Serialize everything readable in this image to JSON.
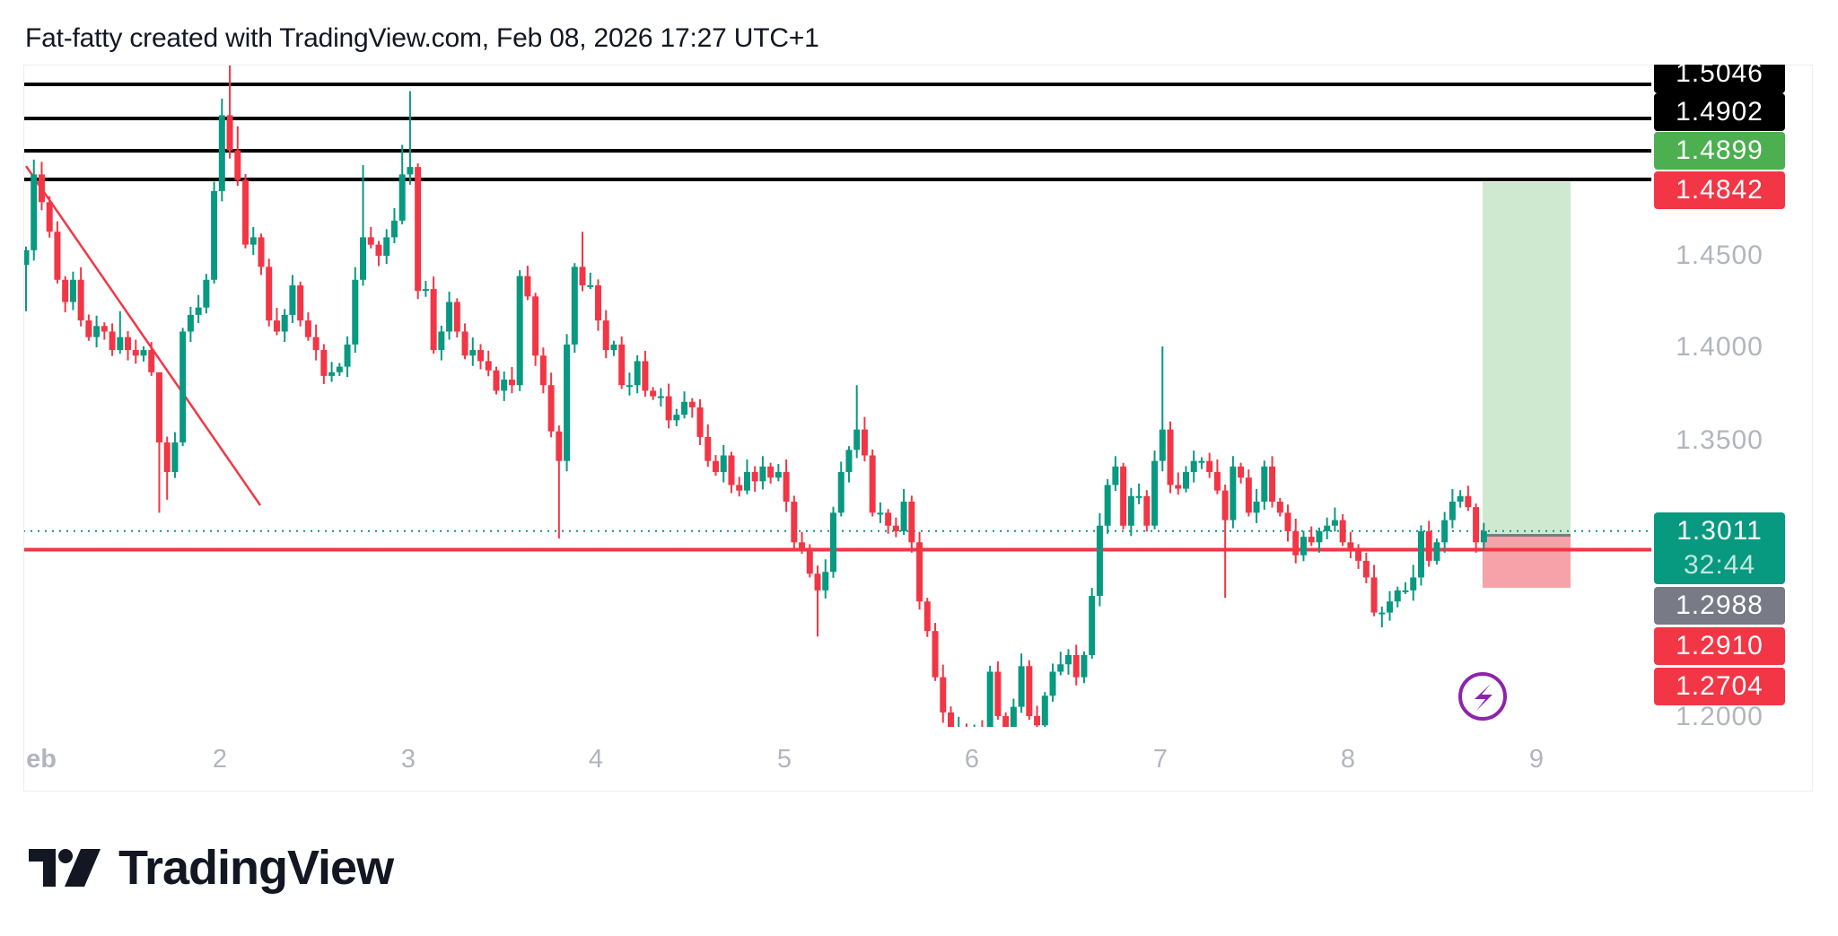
{
  "header": {
    "title": "Fat-fatty created with TradingView.com, Feb 08, 2026 17:27 UTC+1"
  },
  "brand": {
    "logo_text": "TradingView"
  },
  "colors": {
    "up": "#089981",
    "down": "#f23645",
    "target_fill": "#cfe9d0",
    "stop_fill": "#f7a1a8",
    "level_line": "#000000",
    "support_line": "#f23645",
    "alert_icon": "#8e24aa"
  },
  "price_axis": {
    "ticks": [
      "1.4500",
      "1.4000",
      "1.3500",
      "1.2000"
    ],
    "labels": [
      {
        "text": "1.5046",
        "color": "#000000"
      },
      {
        "text": "1.4902",
        "color": "#000000"
      },
      {
        "text": "1.4899",
        "color": "#4caf50"
      },
      {
        "text": "1.4842",
        "color": "#f23645"
      },
      {
        "text": "1.3011",
        "sub": "32:44",
        "color": "#089981"
      },
      {
        "text": "1.2988",
        "color": "#787b86"
      },
      {
        "text": "1.2910",
        "color": "#f23645"
      },
      {
        "text": "1.2704",
        "color": "#f23645"
      }
    ]
  },
  "time_axis": {
    "ticks": [
      "eb",
      "2",
      "3",
      "4",
      "5",
      "6",
      "7",
      "8",
      "9"
    ]
  },
  "alert_icon": "lightning-circle-icon",
  "chart_data": {
    "type": "candlestick",
    "x_range": [
      "Jan 31 23:00",
      "Feb 8 17:00"
    ],
    "ylim": [
      1.1951,
      1.5544
    ],
    "last_price": 1.3011,
    "countdown": "32:44",
    "first_open": 1.445,
    "close": [
      1.453,
      1.494,
      1.479,
      1.463,
      1.437,
      1.425,
      1.437,
      1.415,
      1.406,
      1.412,
      1.409,
      1.399,
      1.406,
      1.399,
      1.396,
      1.399,
      1.387,
      1.349,
      1.333,
      1.349,
      1.409,
      1.418,
      1.422,
      1.437,
      1.485,
      1.526,
      1.507,
      1.491,
      1.456,
      1.46,
      1.444,
      1.415,
      1.409,
      1.418,
      1.434,
      1.415,
      1.406,
      1.399,
      1.385,
      1.387,
      1.39,
      1.402,
      1.437,
      1.46,
      1.456,
      1.45,
      1.46,
      1.469,
      1.494,
      1.498,
      1.431,
      1.432,
      1.399,
      1.409,
      1.425,
      1.409,
      1.396,
      1.399,
      1.393,
      1.388,
      1.377,
      1.383,
      1.38,
      1.439,
      1.428,
      1.396,
      1.38,
      1.355,
      1.339,
      1.402,
      1.444,
      1.434,
      1.434,
      1.415,
      1.399,
      1.402,
      1.38,
      1.38,
      1.393,
      1.377,
      1.374,
      1.374,
      1.361,
      1.364,
      1.371,
      1.368,
      1.352,
      1.339,
      1.333,
      1.342,
      1.326,
      1.323,
      1.333,
      1.328,
      1.336,
      1.33,
      1.333,
      1.317,
      1.295,
      1.292,
      1.278,
      1.269,
      1.279,
      1.311,
      1.333,
      1.345,
      1.356,
      1.342,
      1.311,
      1.311,
      1.304,
      1.301,
      1.317,
      1.295,
      1.263,
      1.247,
      1.222,
      1.203,
      1.192,
      1.195,
      1.188,
      1.192,
      1.186,
      1.225,
      1.201,
      1.192,
      1.206,
      1.228,
      1.201,
      1.196,
      1.212,
      1.225,
      1.229,
      1.234,
      1.222,
      1.234,
      1.266,
      1.304,
      1.326,
      1.336,
      1.304,
      1.32,
      1.32,
      1.304,
      1.339,
      1.356,
      1.326,
      1.324,
      1.333,
      1.339,
      1.339,
      1.333,
      1.323,
      1.307,
      1.336,
      1.33,
      1.311,
      1.317,
      1.336,
      1.317,
      1.311,
      1.301,
      1.288,
      1.298,
      1.295,
      1.301,
      1.304,
      1.307,
      1.295,
      1.292,
      1.285,
      1.276,
      1.257,
      1.257,
      1.263,
      1.269,
      1.269,
      1.276,
      1.301,
      1.285,
      1.295,
      1.307,
      1.317,
      1.32,
      1.314,
      1.295,
      1.3011
    ],
    "high_extremes": {
      "1": 1.502,
      "12": 1.42,
      "17": 1.37,
      "24": 1.49,
      "25": 1.535,
      "26": 1.555,
      "27": 1.52,
      "43": 1.499,
      "48": 1.51,
      "49": 1.539,
      "71": 1.463,
      "106": 1.38,
      "145": 1.401
    },
    "low_extremes": {
      "0": 1.42,
      "17": 1.311,
      "18": 1.318,
      "68": 1.297,
      "101": 1.244,
      "153": 1.265,
      "173": 1.249
    },
    "levels": [
      1.5427,
      1.5243,
      1.5068,
      1.4913
    ],
    "support": 1.291,
    "trendline": [
      [
        1.4985,
        "Jan 31 23:00"
      ],
      [
        1.315,
        "Feb 2 05:00"
      ]
    ],
    "position": {
      "type": "long",
      "entry": 1.2988,
      "target": 1.4899,
      "stop": 1.2704
    }
  }
}
